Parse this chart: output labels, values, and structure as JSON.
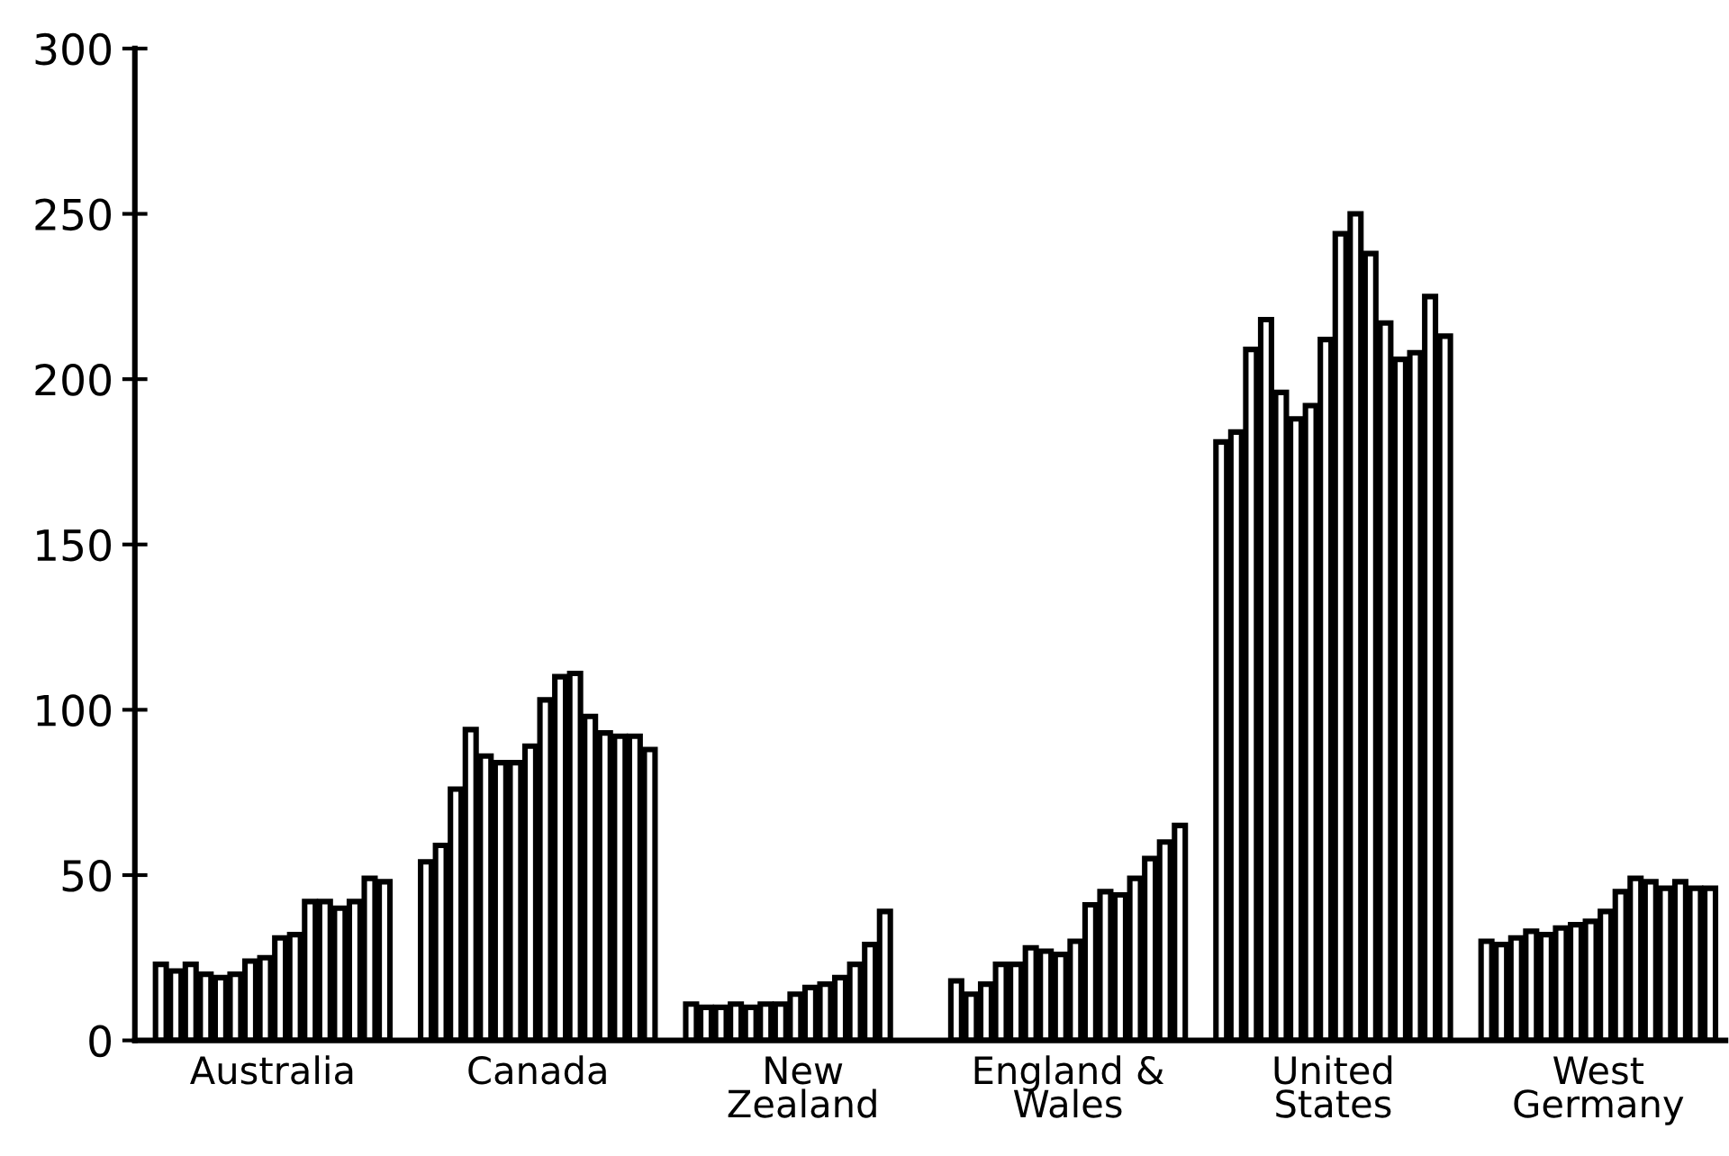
{
  "chart_data": {
    "type": "bar",
    "categories": [
      "Australia",
      "Canada",
      "New\nZealand",
      "England &\nWales",
      "United\nStates",
      "West\nGermany"
    ],
    "series": [
      {
        "color": "#ffffff",
        "values": [
          23,
          54,
          11,
          18,
          181,
          30
        ]
      },
      {
        "color": "#ffffff",
        "values": [
          21,
          59,
          10,
          14,
          184,
          29
        ]
      },
      {
        "color": "#ffffff",
        "values": [
          23,
          76,
          10,
          17,
          209,
          31
        ]
      },
      {
        "color": "#ffffff",
        "values": [
          20,
          94,
          11,
          23,
          218,
          33
        ]
      },
      {
        "color": "#ffffff",
        "values": [
          19,
          86,
          10,
          23,
          196,
          32
        ]
      },
      {
        "color": "#ffffff",
        "values": [
          20,
          84,
          11,
          28,
          188,
          34
        ]
      },
      {
        "color": "#ffffff",
        "values": [
          24,
          84,
          11,
          27,
          192,
          35
        ]
      },
      {
        "color": "#ffffff",
        "values": [
          25,
          89,
          14,
          26,
          212,
          36
        ]
      },
      {
        "color": "#ffffff",
        "values": [
          31,
          103,
          16,
          30,
          244,
          39
        ]
      },
      {
        "color": "#ffffff",
        "values": [
          32,
          110,
          17,
          41,
          250,
          45
        ]
      },
      {
        "color": "#ffffff",
        "values": [
          42,
          111,
          19,
          45,
          238,
          49
        ]
      },
      {
        "color": "#ffffff",
        "values": [
          42,
          98,
          23,
          44,
          217,
          48
        ]
      },
      {
        "color": "#ffffff",
        "values": [
          40,
          93,
          29,
          49,
          206,
          46
        ]
      },
      {
        "color": "#ffffff",
        "values": [
          42,
          92,
          39,
          55,
          208,
          48
        ]
      },
      {
        "color": "#ffffff",
        "values": [
          49,
          92,
          null,
          60,
          225,
          46
        ]
      },
      {
        "color": "#ffffff",
        "values": [
          48,
          88,
          null,
          65,
          213,
          46
        ]
      }
    ],
    "ylim": [
      0,
      300
    ],
    "yticks": [
      0,
      50,
      100,
      150,
      200,
      250,
      300
    ],
    "grid": false
  }
}
